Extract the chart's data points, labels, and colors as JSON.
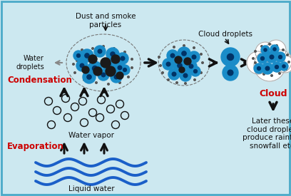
{
  "background_color": "#cce8f0",
  "border_color": "#4aaac8",
  "blue": "#1a8cc8",
  "dark_center": "#003366",
  "black": "#111111",
  "red": "#cc0000",
  "gray": "#888888",
  "white": "#ffffff",
  "labels": {
    "dust": "Dust and smoke\nparticles",
    "water_droplets": "Water\ndroplets",
    "condensation": "Condensation",
    "cloud_droplets": "Cloud droplets",
    "cloud": "Cloud",
    "water_vapor": "Water vapor",
    "evaporation": "Evaporation",
    "liquid_water": "Liquid water",
    "rainfall": "Later these\ncloud droplets\nproduce rainfall,\nsnowfall etc."
  },
  "figsize": [
    4.08,
    2.75
  ],
  "dpi": 100
}
